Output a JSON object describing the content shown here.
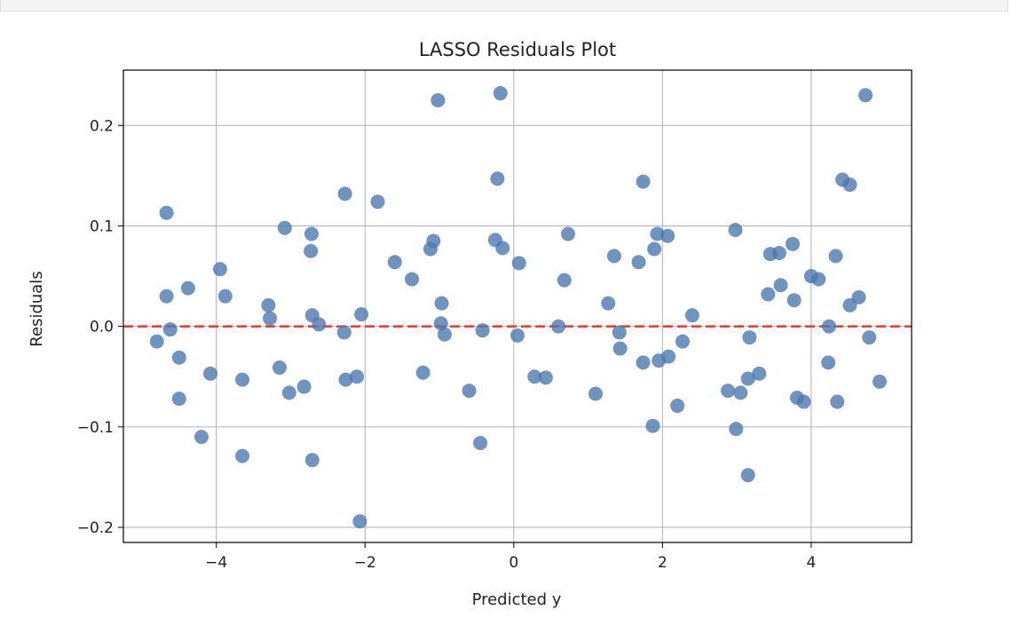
{
  "chart_data": {
    "type": "scatter",
    "title": "LASSO Residuals Plot",
    "xlabel": "Predicted y",
    "ylabel": "Residuals",
    "xlim": [
      -5.25,
      5.35
    ],
    "ylim": [
      -0.215,
      0.255
    ],
    "xticks": [
      -4,
      -2,
      0,
      2,
      4
    ],
    "yticks": [
      -0.2,
      -0.1,
      0.0,
      0.1,
      0.2
    ],
    "xtick_labels": [
      "−4",
      "−2",
      "0",
      "2",
      "4"
    ],
    "ytick_labels": [
      "−0.2",
      "−0.1",
      "0.0",
      "0.1",
      "0.2"
    ],
    "grid": true,
    "reference_line": {
      "y": 0,
      "style": "dashed",
      "color": "#e8392b"
    },
    "point_color": "#4c78b0",
    "points": [
      {
        "x": -4.8,
        "y": -0.015
      },
      {
        "x": -4.67,
        "y": 0.113
      },
      {
        "x": -4.67,
        "y": 0.03
      },
      {
        "x": -4.62,
        "y": -0.003
      },
      {
        "x": -4.5,
        "y": -0.031
      },
      {
        "x": -4.5,
        "y": -0.072
      },
      {
        "x": -4.38,
        "y": 0.038
      },
      {
        "x": -4.2,
        "y": -0.11
      },
      {
        "x": -4.08,
        "y": -0.047
      },
      {
        "x": -3.95,
        "y": 0.057
      },
      {
        "x": -3.88,
        "y": 0.03
      },
      {
        "x": -3.65,
        "y": -0.053
      },
      {
        "x": -3.65,
        "y": -0.129
      },
      {
        "x": -3.3,
        "y": 0.021
      },
      {
        "x": -3.28,
        "y": 0.008
      },
      {
        "x": -3.15,
        "y": -0.041
      },
      {
        "x": -3.08,
        "y": 0.098
      },
      {
        "x": -3.02,
        "y": -0.066
      },
      {
        "x": -2.82,
        "y": -0.06
      },
      {
        "x": -2.72,
        "y": 0.092
      },
      {
        "x": -2.73,
        "y": 0.075
      },
      {
        "x": -2.71,
        "y": 0.011
      },
      {
        "x": -2.71,
        "y": -0.133
      },
      {
        "x": -2.62,
        "y": 0.002
      },
      {
        "x": -2.27,
        "y": 0.132
      },
      {
        "x": -2.28,
        "y": -0.006
      },
      {
        "x": -2.26,
        "y": -0.053
      },
      {
        "x": -2.11,
        "y": -0.05
      },
      {
        "x": -2.05,
        "y": 0.012
      },
      {
        "x": -2.07,
        "y": -0.194
      },
      {
        "x": -1.83,
        "y": 0.124
      },
      {
        "x": -1.6,
        "y": 0.064
      },
      {
        "x": -1.37,
        "y": 0.047
      },
      {
        "x": -1.22,
        "y": -0.046
      },
      {
        "x": -1.12,
        "y": 0.077
      },
      {
        "x": -1.08,
        "y": 0.085
      },
      {
        "x": -1.02,
        "y": 0.225
      },
      {
        "x": -0.98,
        "y": 0.003
      },
      {
        "x": -0.97,
        "y": 0.023
      },
      {
        "x": -0.93,
        "y": -0.008
      },
      {
        "x": -0.6,
        "y": -0.064
      },
      {
        "x": -0.45,
        "y": -0.116
      },
      {
        "x": -0.42,
        "y": -0.004
      },
      {
        "x": -0.25,
        "y": 0.086
      },
      {
        "x": -0.22,
        "y": 0.147
      },
      {
        "x": -0.18,
        "y": 0.232
      },
      {
        "x": -0.15,
        "y": 0.078
      },
      {
        "x": 0.05,
        "y": -0.009
      },
      {
        "x": 0.07,
        "y": 0.063
      },
      {
        "x": 0.28,
        "y": -0.05
      },
      {
        "x": 0.43,
        "y": -0.051
      },
      {
        "x": 0.6,
        "y": 0.0
      },
      {
        "x": 0.68,
        "y": 0.046
      },
      {
        "x": 0.73,
        "y": 0.092
      },
      {
        "x": 1.1,
        "y": -0.067
      },
      {
        "x": 1.27,
        "y": 0.023
      },
      {
        "x": 1.35,
        "y": 0.07
      },
      {
        "x": 1.42,
        "y": -0.006
      },
      {
        "x": 1.43,
        "y": -0.022
      },
      {
        "x": 1.68,
        "y": 0.064
      },
      {
        "x": 1.74,
        "y": 0.144
      },
      {
        "x": 1.74,
        "y": -0.036
      },
      {
        "x": 1.87,
        "y": -0.099
      },
      {
        "x": 1.89,
        "y": 0.077
      },
      {
        "x": 1.93,
        "y": 0.092
      },
      {
        "x": 1.95,
        "y": -0.034
      },
      {
        "x": 2.07,
        "y": 0.09
      },
      {
        "x": 2.08,
        "y": -0.03
      },
      {
        "x": 2.2,
        "y": -0.079
      },
      {
        "x": 2.27,
        "y": -0.015
      },
      {
        "x": 2.4,
        "y": 0.011
      },
      {
        "x": 2.88,
        "y": -0.064
      },
      {
        "x": 2.98,
        "y": 0.096
      },
      {
        "x": 2.99,
        "y": -0.102
      },
      {
        "x": 3.05,
        "y": -0.066
      },
      {
        "x": 3.15,
        "y": -0.148
      },
      {
        "x": 3.15,
        "y": -0.052
      },
      {
        "x": 3.17,
        "y": -0.011
      },
      {
        "x": 3.3,
        "y": -0.047
      },
      {
        "x": 3.42,
        "y": 0.032
      },
      {
        "x": 3.45,
        "y": 0.072
      },
      {
        "x": 3.57,
        "y": 0.073
      },
      {
        "x": 3.59,
        "y": 0.041
      },
      {
        "x": 3.75,
        "y": 0.082
      },
      {
        "x": 3.77,
        "y": 0.026
      },
      {
        "x": 3.81,
        "y": -0.071
      },
      {
        "x": 3.9,
        "y": -0.075
      },
      {
        "x": 4.0,
        "y": 0.05
      },
      {
        "x": 4.1,
        "y": 0.047
      },
      {
        "x": 4.23,
        "y": -0.036
      },
      {
        "x": 4.24,
        "y": 0.0
      },
      {
        "x": 4.33,
        "y": 0.07
      },
      {
        "x": 4.35,
        "y": -0.075
      },
      {
        "x": 4.42,
        "y": 0.146
      },
      {
        "x": 4.52,
        "y": 0.141
      },
      {
        "x": 4.52,
        "y": 0.021
      },
      {
        "x": 4.64,
        "y": 0.029
      },
      {
        "x": 4.73,
        "y": 0.23
      },
      {
        "x": 4.78,
        "y": -0.011
      },
      {
        "x": 4.92,
        "y": -0.055
      }
    ]
  }
}
